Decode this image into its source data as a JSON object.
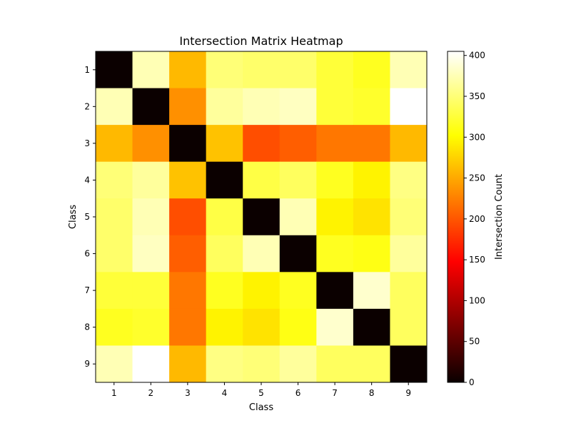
{
  "chart_data": {
    "type": "heatmap",
    "title": "Intersection Matrix Heatmap",
    "xlabel": "Class",
    "ylabel": "Class",
    "x_categories": [
      "1",
      "2",
      "3",
      "4",
      "5",
      "6",
      "7",
      "8",
      "9"
    ],
    "y_categories": [
      "1",
      "2",
      "3",
      "4",
      "5",
      "6",
      "7",
      "8",
      "9"
    ],
    "values": [
      [
        0,
        375,
        260,
        350,
        345,
        345,
        325,
        315,
        375
      ],
      [
        375,
        0,
        235,
        365,
        375,
        380,
        325,
        320,
        405
      ],
      [
        260,
        235,
        0,
        265,
        195,
        205,
        220,
        220,
        260
      ],
      [
        350,
        365,
        265,
        0,
        330,
        340,
        315,
        295,
        355
      ],
      [
        345,
        375,
        195,
        330,
        0,
        375,
        295,
        285,
        350
      ],
      [
        345,
        380,
        205,
        340,
        375,
        0,
        315,
        310,
        365
      ],
      [
        325,
        325,
        220,
        315,
        295,
        315,
        0,
        385,
        340
      ],
      [
        315,
        320,
        220,
        295,
        285,
        310,
        385,
        0,
        340
      ],
      [
        375,
        405,
        260,
        355,
        350,
        365,
        340,
        340,
        0
      ]
    ],
    "colormap": "hot",
    "colorbar": {
      "label": "Intersection Count",
      "min": 0,
      "max": 405,
      "ticks": [
        0,
        50,
        100,
        150,
        200,
        250,
        300,
        350,
        400
      ]
    }
  }
}
